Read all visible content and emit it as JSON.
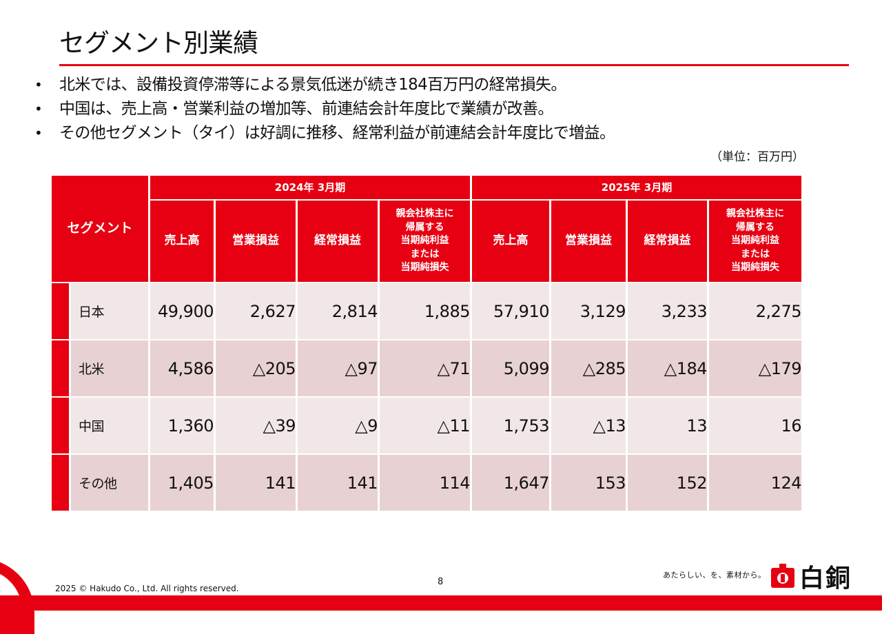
{
  "title": "セグメント別業績",
  "bullets": [
    "北米では、設備投資停滞等による景気低迷が続き184百万円の経常損失。",
    "中国は、売上高・営業利益の増加等、前連結会計年度比で業績が改善。",
    "その他セグメント（タイ）は好調に推移、経常利益が前連結会計年度比で増益。"
  ],
  "bullet_glyph": "•",
  "unit": "（単位：百万円）",
  "table": {
    "segment_header": "セグメント",
    "periods": [
      "2024年 3月期",
      "2025年 3月期"
    ],
    "columns": [
      "売上高",
      "営業損益",
      "経常損益",
      "親会社株主に帰属する当期純利益または当期純損失"
    ],
    "col_lines": {
      "sales": "売上高",
      "op": "営業損益",
      "ord": "経常損益",
      "net": [
        "親会社株主に",
        "帰属する",
        "当期純利益",
        "または",
        "当期純損失"
      ]
    },
    "rows": [
      {
        "name": "日本",
        "values": [
          "49,900",
          "2,627",
          "2,814",
          "1,885",
          "57,910",
          "3,129",
          "3,233",
          "2,275"
        ]
      },
      {
        "name": "北米",
        "values": [
          "4,586",
          "△205",
          "△97",
          "△71",
          "5,099",
          "△285",
          "△184",
          "△179"
        ]
      },
      {
        "name": "中国",
        "values": [
          "1,360",
          "△39",
          "△9",
          "△11",
          "1,753",
          "△13",
          "13",
          "16"
        ]
      },
      {
        "name": "その他",
        "values": [
          "1,405",
          "141",
          "141",
          "114",
          "1,647",
          "153",
          "152",
          "124"
        ]
      }
    ]
  },
  "footer": {
    "copyright": "2025 © Hakudo Co., Ltd. All rights reserved.",
    "page_number": "8",
    "tagline": "あたらしい、を、素材から。",
    "logo_text": "白銅"
  },
  "colors": {
    "accent": "#e60012",
    "row_light": "#f2e7e7",
    "row_dark": "#e8d1d3"
  }
}
